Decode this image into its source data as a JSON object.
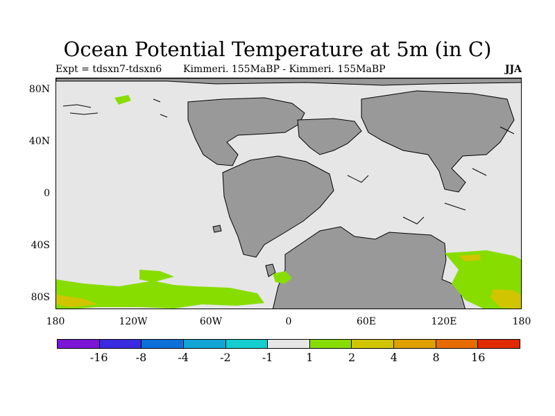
{
  "title": "Ocean Potential Temperature at 5m (in C)",
  "expt_label": "Expt = tdsxn7-tdsxn6",
  "cases_label": "Kimmeri. 155MaBP - Kimmeri. 155MaBP",
  "season": "JJA",
  "lat_labels": [
    "80N",
    "40N",
    "0",
    "40S",
    "80S"
  ],
  "lon_labels": [
    "180",
    "120W",
    "60W",
    "0",
    "60E",
    "120E",
    "180"
  ],
  "colorbar": {
    "colors": [
      "#7b16d9",
      "#3b2be0",
      "#0f6fd8",
      "#11a5d6",
      "#14cdcf",
      "#e6e6e6",
      "#88dd00",
      "#d1c400",
      "#dfa000",
      "#e66b00",
      "#e02b00"
    ],
    "labels": [
      "-16",
      "-8",
      "-4",
      "-2",
      "-1",
      "1",
      "2",
      "4",
      "8",
      "16"
    ]
  },
  "colors": {
    "ocean": "#e6e6e6",
    "land": "#999999",
    "coast": "#000000",
    "warm_small": "#88dd00",
    "warm_mid": "#d1c400",
    "warm_high": "#dfa000"
  }
}
